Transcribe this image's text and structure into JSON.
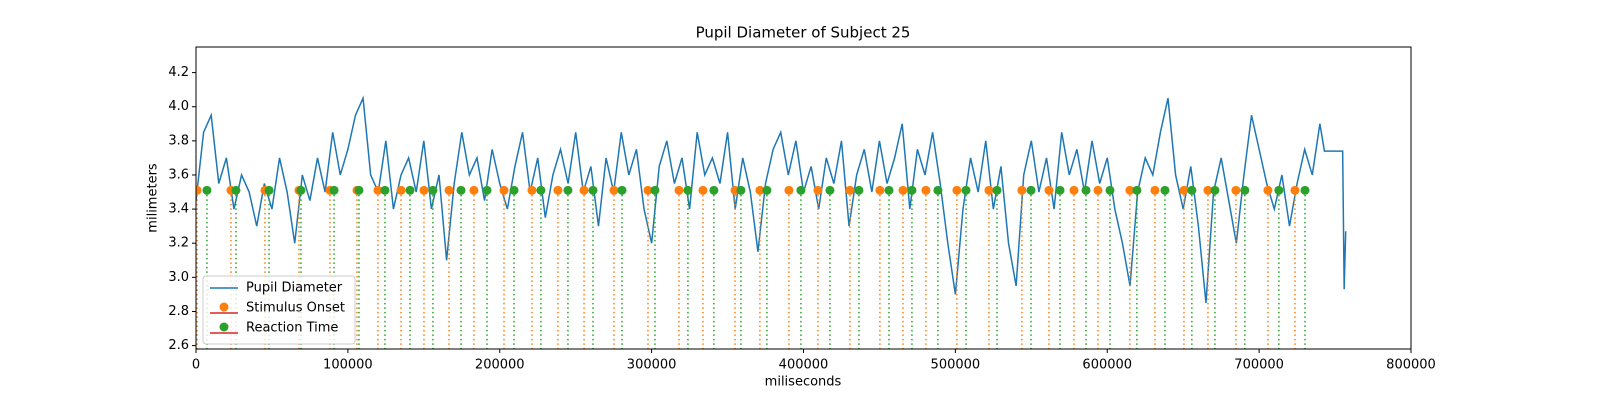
{
  "chart_data": {
    "type": "line",
    "title": "Pupil Diameter of Subject 25",
    "x_label": "miliseconds",
    "y_label": "milimeters",
    "xlim": [
      0,
      800000
    ],
    "ylim": [
      2.58,
      4.35
    ],
    "xticks": [
      0,
      100000,
      200000,
      300000,
      400000,
      500000,
      600000,
      700000,
      800000
    ],
    "yticks": [
      2.6,
      2.8,
      {
        "value": 3,
        "label": "3.0"
      },
      3.2,
      3.4,
      3.6,
      3.8,
      {
        "value": 4,
        "label": "4.0"
      },
      4.2
    ],
    "legend": "lower left",
    "series": [
      {
        "name": "Pupil Diameter",
        "type": "line",
        "color": "#1f77b4",
        "x": [
          0,
          5000,
          10000,
          15000,
          20000,
          25000,
          30000,
          35000,
          40000,
          45000,
          50000,
          55000,
          60000,
          65000,
          70000,
          75000,
          80000,
          85000,
          90000,
          95000,
          100000,
          105000,
          110000,
          115000,
          120000,
          125000,
          130000,
          135000,
          140000,
          145000,
          150000,
          155000,
          160000,
          165000,
          170000,
          175000,
          180000,
          185000,
          190000,
          195000,
          200000,
          205000,
          210000,
          215000,
          220000,
          225000,
          230000,
          235000,
          240000,
          245000,
          250000,
          255000,
          260000,
          265000,
          270000,
          275000,
          280000,
          285000,
          290000,
          295000,
          300000,
          305000,
          310000,
          315000,
          320000,
          325000,
          330000,
          335000,
          340000,
          345000,
          350000,
          355000,
          360000,
          365000,
          370000,
          375000,
          380000,
          385000,
          390000,
          395000,
          400000,
          405000,
          410000,
          415000,
          420000,
          425000,
          430000,
          435000,
          440000,
          445000,
          450000,
          455000,
          460000,
          465000,
          470000,
          475000,
          480000,
          485000,
          490000,
          495000,
          500000,
          505000,
          510000,
          515000,
          520000,
          525000,
          530000,
          535000,
          540000,
          545000,
          550000,
          555000,
          560000,
          565000,
          570000,
          575000,
          580000,
          585000,
          590000,
          595000,
          600000,
          605000,
          610000,
          615000,
          620000,
          625000,
          630000,
          635000,
          640000,
          645000,
          650000,
          655000,
          660000,
          665000,
          670000,
          675000,
          680000,
          685000,
          690000,
          695000,
          700000,
          705000,
          710000,
          715000,
          720000,
          725000,
          730000,
          735000,
          740000,
          743000,
          755000,
          756000,
          757000
        ],
        "values": [
          3.45,
          3.85,
          3.95,
          3.55,
          3.7,
          3.4,
          3.6,
          3.5,
          3.3,
          3.55,
          3.4,
          3.7,
          3.5,
          3.2,
          3.6,
          3.45,
          3.7,
          3.5,
          3.85,
          3.6,
          3.75,
          3.95,
          4.05,
          3.6,
          3.5,
          3.8,
          3.4,
          3.6,
          3.7,
          3.5,
          3.8,
          3.4,
          3.6,
          3.1,
          3.55,
          3.85,
          3.6,
          3.7,
          3.45,
          3.75,
          3.55,
          3.4,
          3.65,
          3.85,
          3.5,
          3.7,
          3.35,
          3.6,
          3.75,
          3.55,
          3.85,
          3.5,
          3.65,
          3.3,
          3.7,
          3.5,
          3.85,
          3.6,
          3.75,
          3.4,
          3.2,
          3.65,
          3.8,
          3.55,
          3.7,
          3.4,
          3.85,
          3.6,
          3.7,
          3.55,
          3.85,
          3.4,
          3.7,
          3.5,
          3.15,
          3.55,
          3.75,
          3.85,
          3.6,
          3.8,
          3.5,
          3.65,
          3.4,
          3.7,
          3.55,
          3.8,
          3.3,
          3.6,
          3.75,
          3.5,
          3.8,
          3.55,
          3.7,
          3.9,
          3.4,
          3.75,
          3.6,
          3.85,
          3.55,
          3.2,
          2.9,
          3.4,
          3.7,
          3.5,
          3.8,
          3.4,
          3.65,
          3.2,
          2.95,
          3.6,
          3.8,
          3.5,
          3.7,
          3.4,
          3.85,
          3.6,
          3.75,
          3.5,
          3.8,
          3.55,
          3.7,
          3.4,
          3.2,
          2.95,
          3.5,
          3.7,
          3.6,
          3.85,
          4.05,
          3.6,
          3.4,
          3.65,
          3.3,
          2.85,
          3.5,
          3.7,
          3.45,
          3.2,
          3.6,
          3.95,
          3.75,
          3.55,
          3.4,
          3.6,
          3.3,
          3.55,
          3.75,
          3.6,
          3.9,
          3.74,
          3.74,
          2.93,
          3.27
        ]
      },
      {
        "name": "Stimulus Onset",
        "type": "stem",
        "color": "#ff7f0e",
        "baseline_color": "#d62728",
        "x": [
          700,
          23000,
          45400,
          67800,
          88200,
          106000,
          119800,
          135000,
          150100,
          166600,
          183000,
          202800,
          221200,
          238300,
          255500,
          275200,
          297600,
          318000,
          333800,
          354900,
          371300,
          390400,
          409500,
          430600,
          450300,
          465500,
          480600,
          501000,
          522100,
          543800,
          561600,
          578100,
          593900,
          614900,
          631400,
          650500,
          666300,
          684700,
          705800,
          723600
        ],
        "values": [
          3.51,
          3.51,
          3.51,
          3.51,
          3.51,
          3.51,
          3.51,
          3.51,
          3.51,
          3.51,
          3.51,
          3.51,
          3.51,
          3.51,
          3.51,
          3.51,
          3.51,
          3.51,
          3.51,
          3.51,
          3.51,
          3.51,
          3.51,
          3.51,
          3.51,
          3.51,
          3.51,
          3.51,
          3.51,
          3.51,
          3.51,
          3.51,
          3.51,
          3.51,
          3.51,
          3.51,
          3.51,
          3.51,
          3.51,
          3.51
        ]
      },
      {
        "name": "Reaction Time",
        "type": "stem",
        "color": "#2ca02c",
        "baseline_color": "#d62728",
        "x": [
          7200,
          26300,
          48100,
          69100,
          90900,
          107300,
          124400,
          140900,
          156000,
          174500,
          191600,
          209400,
          227100,
          244900,
          261400,
          280500,
          302200,
          323900,
          341000,
          358800,
          375900,
          398300,
          417400,
          436500,
          456300,
          471400,
          488500,
          507000,
          527400,
          549800,
          568900,
          586000,
          601800,
          619500,
          638000,
          655700,
          670900,
          690600,
          713000,
          730200
        ],
        "values": [
          3.51,
          3.51,
          3.51,
          3.51,
          3.51,
          3.51,
          3.51,
          3.51,
          3.51,
          3.51,
          3.51,
          3.51,
          3.51,
          3.51,
          3.51,
          3.51,
          3.51,
          3.51,
          3.51,
          3.51,
          3.51,
          3.51,
          3.51,
          3.51,
          3.51,
          3.51,
          3.51,
          3.51,
          3.51,
          3.51,
          3.51,
          3.51,
          3.51,
          3.51,
          3.51,
          3.51,
          3.51,
          3.51,
          3.51,
          3.51
        ]
      }
    ]
  }
}
